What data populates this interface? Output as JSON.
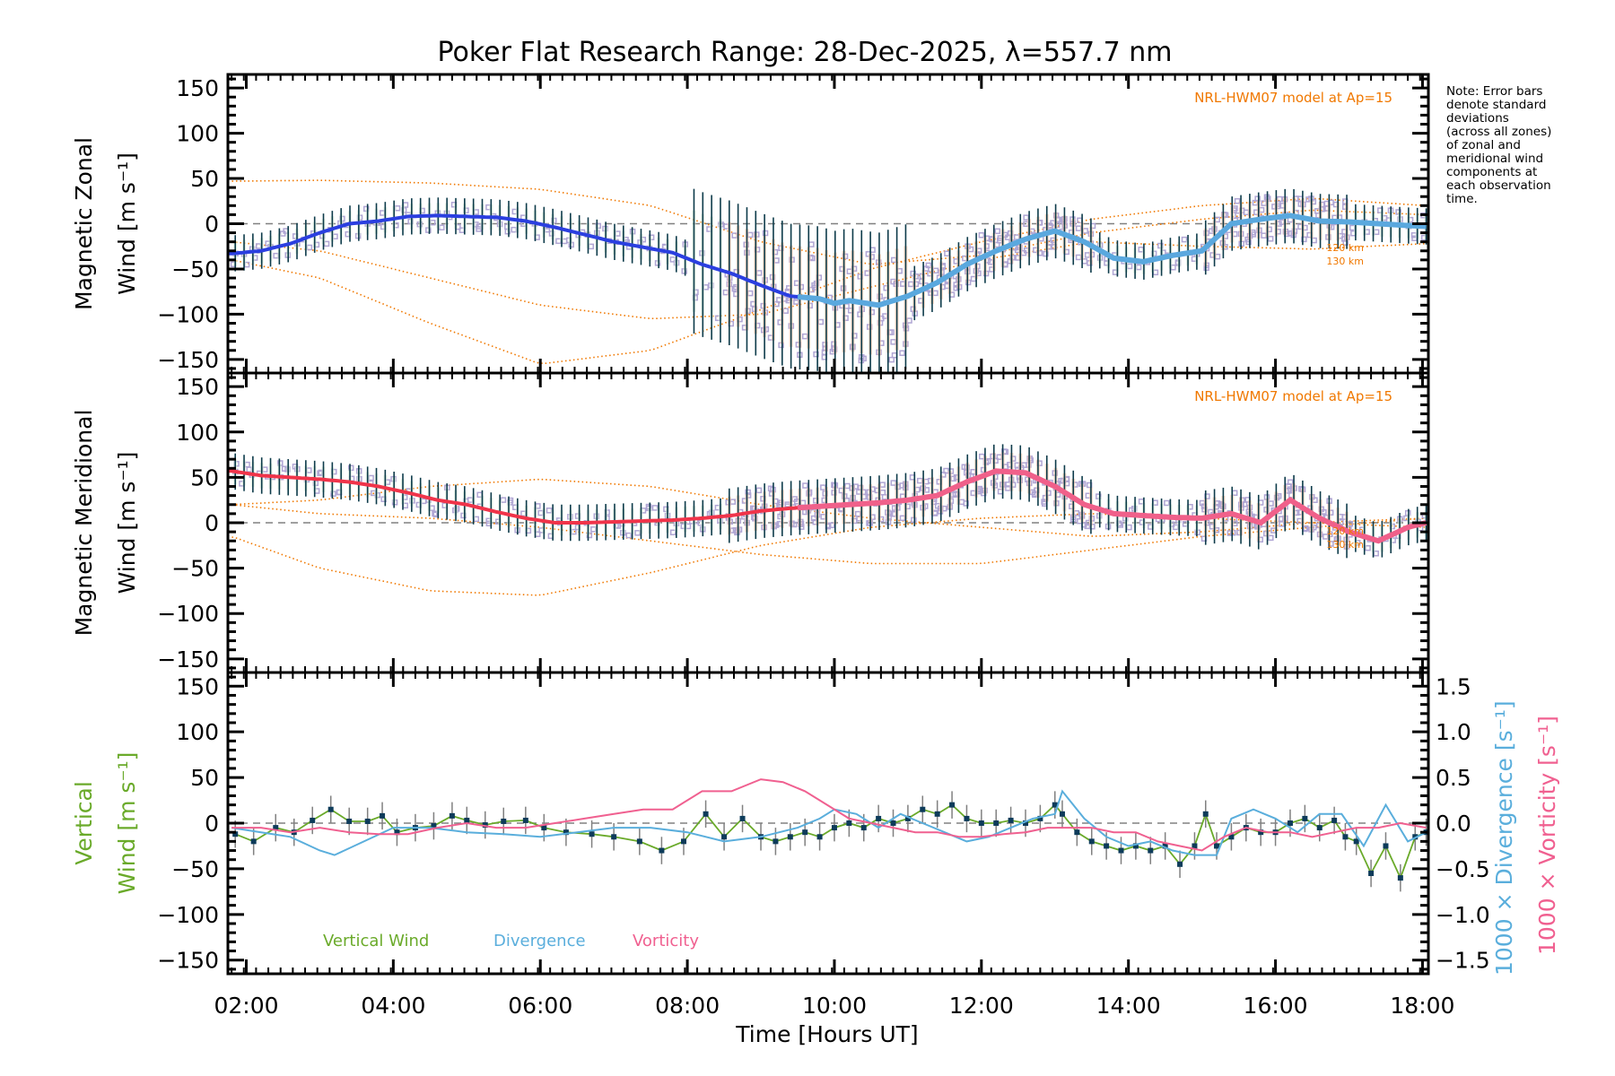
{
  "title": "Poker Flat Research Range: 28-Dec-2025, λ=557.7 nm",
  "note_lines": [
    "Note: Error bars",
    "denote standard",
    "deviations",
    "(across all zones)",
    "of zonal and",
    "meridional wind",
    "components at",
    "each observation",
    "time."
  ],
  "colors": {
    "zonal_fit": "#2b3fe0",
    "zonal_fit_late": "#5aa8de",
    "meridional_fit": "#f0344a",
    "meridional_fit_late": "#f0608a",
    "model": "#f07800",
    "scatter": "#b0a6d4",
    "errorbar": "#0d3b4a",
    "vertical_wind": "#6aaa2a",
    "vertical_marker": "#0d3b5a",
    "divergence": "#5aaedc",
    "vorticity": "#f06090",
    "zero_line": "#808080"
  },
  "chart_data": [
    {
      "type": "line",
      "panel": "zonal",
      "ylabel_line1": "Magnetic Zonal",
      "ylabel_line2": "Wind [m s⁻¹]",
      "ylim": [
        -165,
        165
      ],
      "yticks": [
        -150,
        -100,
        -50,
        0,
        50,
        100,
        150
      ],
      "ytick_labels": [
        "−150",
        "−100",
        "−50",
        "0",
        "50",
        "100",
        "150"
      ],
      "model_label": "NRL-HWM07 model at Ap=15",
      "model_alt_labels": [
        "120 km",
        "130 km"
      ],
      "series": [
        {
          "name": "Zonal wind fit",
          "x": [
            1.8,
            2.2,
            2.6,
            3.0,
            3.4,
            3.8,
            4.2,
            4.6,
            5.0,
            5.4,
            5.8,
            6.2,
            6.6,
            7.0,
            7.4,
            7.8,
            8.2,
            8.6,
            9.0,
            9.4,
            9.8,
            10.0,
            10.2,
            10.6,
            11.0,
            11.4,
            11.8,
            12.2,
            12.6,
            13.0,
            13.4,
            13.8,
            14.2,
            14.6,
            15.0,
            15.4,
            15.8,
            16.2,
            16.6,
            17.0,
            17.4,
            17.8,
            18.05
          ],
          "y": [
            -33,
            -30,
            -22,
            -10,
            0,
            3,
            8,
            9,
            8,
            7,
            3,
            -4,
            -12,
            -20,
            -26,
            -32,
            -45,
            -55,
            -68,
            -80,
            -83,
            -88,
            -85,
            -90,
            -80,
            -65,
            -45,
            -30,
            -17,
            -8,
            -20,
            -38,
            -42,
            -35,
            -30,
            0,
            5,
            9,
            3,
            2,
            0,
            -2,
            -3
          ]
        },
        {
          "name": "Model 120 km",
          "x": [
            1.8,
            3.0,
            4.5,
            6.0,
            7.5,
            9.0,
            10.5,
            12.0,
            13.5,
            15.0,
            16.5,
            18.05
          ],
          "y": [
            47,
            48,
            45,
            38,
            20,
            -20,
            -45,
            -35,
            -10,
            5,
            15,
            10
          ]
        },
        {
          "name": "Model 130 km",
          "x": [
            1.8,
            3.0,
            4.5,
            6.0,
            7.5,
            9.0,
            10.5,
            12.0,
            13.5,
            15.0,
            16.5,
            18.05
          ],
          "y": [
            -40,
            -60,
            -110,
            -155,
            -140,
            -95,
            -50,
            -20,
            5,
            20,
            28,
            20
          ]
        },
        {
          "name": "Model 120 km (b)",
          "x": [
            1.8,
            3.0,
            4.5,
            6.0,
            7.5,
            9.0,
            10.5,
            12.0,
            13.5,
            15.0,
            16.5,
            18.05
          ],
          "y": [
            -20,
            -30,
            -60,
            -90,
            -105,
            -100,
            -70,
            -40,
            -20,
            -25,
            -28,
            -22
          ]
        }
      ]
    },
    {
      "type": "line",
      "panel": "meridional",
      "ylabel_line1": "Magnetic Meridional",
      "ylabel_line2": "Wind [m s⁻¹]",
      "ylim": [
        -165,
        165
      ],
      "yticks": [
        -150,
        -100,
        -50,
        0,
        50,
        100,
        150
      ],
      "ytick_labels": [
        "−150",
        "−100",
        "−50",
        "0",
        "50",
        "100",
        "150"
      ],
      "model_label": "NRL-HWM07 model at Ap=15",
      "model_alt_labels": [
        "120 km",
        "130 km"
      ],
      "series": [
        {
          "name": "Meridional wind fit",
          "x": [
            1.8,
            2.2,
            2.6,
            3.0,
            3.4,
            3.8,
            4.2,
            4.6,
            5.0,
            5.4,
            5.8,
            6.2,
            6.6,
            7.0,
            7.4,
            7.8,
            8.2,
            8.6,
            9.0,
            9.4,
            9.8,
            10.2,
            10.6,
            11.0,
            11.4,
            11.8,
            12.2,
            12.6,
            13.0,
            13.4,
            13.8,
            14.2,
            14.6,
            15.0,
            15.4,
            15.8,
            16.2,
            16.6,
            17.0,
            17.4,
            17.8,
            18.05
          ],
          "y": [
            57,
            52,
            50,
            48,
            45,
            40,
            33,
            25,
            20,
            12,
            5,
            0,
            0,
            1,
            2,
            3,
            5,
            8,
            13,
            16,
            18,
            20,
            22,
            25,
            30,
            45,
            57,
            55,
            40,
            20,
            10,
            8,
            6,
            5,
            10,
            0,
            25,
            5,
            -10,
            -20,
            -5,
            0
          ]
        },
        {
          "name": "Model 120 km",
          "x": [
            1.8,
            3.0,
            4.5,
            6.0,
            7.5,
            9.0,
            10.5,
            12.0,
            13.5,
            15.0,
            16.5,
            18.05
          ],
          "y": [
            20,
            25,
            40,
            48,
            40,
            20,
            5,
            -5,
            -15,
            -10,
            0,
            5
          ]
        },
        {
          "name": "Model 130 km",
          "x": [
            1.8,
            3.0,
            4.5,
            6.0,
            7.5,
            9.0,
            10.5,
            12.0,
            13.5,
            15.0,
            16.5,
            18.05
          ],
          "y": [
            -15,
            -50,
            -75,
            -80,
            -55,
            -25,
            -5,
            5,
            10,
            5,
            0,
            -5
          ]
        },
        {
          "name": "Model 120 km (b)",
          "x": [
            1.8,
            3.0,
            4.5,
            6.0,
            7.5,
            9.0,
            10.5,
            12.0,
            13.5,
            15.0,
            16.5,
            18.05
          ],
          "y": [
            20,
            10,
            5,
            -5,
            -20,
            -35,
            -45,
            -45,
            -30,
            -15,
            -5,
            5
          ]
        }
      ]
    },
    {
      "type": "line",
      "panel": "vertical",
      "ylabel_line1": "Vertical",
      "ylabel_line2": "Wind [m s⁻¹]",
      "ylim": [
        -165,
        165
      ],
      "yticks": [
        -150,
        -100,
        -50,
        0,
        50,
        100,
        150
      ],
      "ytick_labels": [
        "−150",
        "−100",
        "−50",
        "0",
        "50",
        "100",
        "150"
      ],
      "y2lim": [
        -1.65,
        1.65
      ],
      "y2ticks": [
        -1.5,
        -1.0,
        -0.5,
        0.0,
        0.5,
        1.0,
        1.5
      ],
      "y2tick_labels": [
        "−1.5",
        "−1.0",
        "−0.5",
        "0.0",
        "0.5",
        "1.0",
        "1.5"
      ],
      "y2label_divergence": "1000 × Divergence [s⁻¹]",
      "y2label_vorticity": "1000 × Vorticity [s⁻¹]",
      "legend": [
        "Vertical Wind",
        "Divergence",
        "Vorticity"
      ],
      "legend_position": "bottom-left",
      "series": [
        {
          "name": "Vertical Wind",
          "axis": "left",
          "x": [
            1.85,
            2.1,
            2.4,
            2.65,
            2.9,
            3.15,
            3.4,
            3.65,
            3.85,
            4.05,
            4.3,
            4.55,
            4.8,
            5.0,
            5.25,
            5.5,
            5.8,
            6.05,
            6.35,
            6.7,
            7.0,
            7.35,
            7.65,
            7.95,
            8.25,
            8.5,
            8.75,
            9.0,
            9.2,
            9.4,
            9.6,
            9.8,
            10.0,
            10.2,
            10.4,
            10.6,
            10.8,
            11.0,
            11.2,
            11.4,
            11.6,
            11.8,
            12.0,
            12.2,
            12.4,
            12.6,
            12.8,
            13.0,
            13.1,
            13.3,
            13.5,
            13.7,
            13.9,
            14.1,
            14.3,
            14.5,
            14.7,
            14.9,
            15.05,
            15.2,
            15.4,
            15.6,
            15.8,
            16.0,
            16.2,
            16.4,
            16.6,
            16.8,
            16.95,
            17.1,
            17.3,
            17.5,
            17.7,
            17.9,
            18.05
          ],
          "y": [
            -12,
            -20,
            -5,
            -10,
            3,
            15,
            2,
            2,
            8,
            -10,
            -5,
            -3,
            8,
            3,
            -2,
            2,
            3,
            -5,
            -10,
            -12,
            -15,
            -20,
            -30,
            -20,
            10,
            -15,
            5,
            -15,
            -20,
            -15,
            -10,
            -15,
            -5,
            0,
            -5,
            5,
            0,
            5,
            15,
            10,
            20,
            5,
            0,
            0,
            3,
            0,
            5,
            20,
            10,
            -10,
            -20,
            -25,
            -30,
            -25,
            -30,
            -25,
            -45,
            -25,
            10,
            -25,
            -15,
            -5,
            -10,
            -10,
            0,
            5,
            -5,
            3,
            -15,
            -20,
            -55,
            -25,
            -60,
            -15,
            -10
          ]
        },
        {
          "name": "Divergence",
          "axis": "right",
          "x": [
            1.8,
            2.2,
            2.6,
            3.0,
            3.2,
            3.6,
            4.0,
            4.5,
            5.0,
            5.5,
            6.0,
            6.5,
            7.0,
            7.5,
            8.0,
            8.5,
            9.0,
            9.5,
            9.8,
            10.0,
            10.3,
            10.6,
            10.9,
            11.2,
            11.5,
            11.8,
            12.1,
            12.4,
            12.7,
            13.0,
            13.1,
            13.4,
            13.7,
            14.0,
            14.3,
            14.6,
            14.9,
            15.2,
            15.4,
            15.7,
            16.0,
            16.3,
            16.6,
            16.9,
            17.2,
            17.5,
            17.8,
            18.05
          ],
          "y": [
            -0.05,
            -0.1,
            -0.15,
            -0.3,
            -0.35,
            -0.2,
            -0.05,
            -0.05,
            -0.1,
            -0.12,
            -0.15,
            -0.1,
            -0.05,
            -0.05,
            -0.1,
            -0.2,
            -0.15,
            -0.05,
            0.05,
            0.15,
            0.1,
            -0.05,
            0.1,
            0.0,
            -0.1,
            -0.2,
            -0.15,
            -0.05,
            0.05,
            0.1,
            0.35,
            0.05,
            -0.15,
            -0.25,
            -0.2,
            -0.3,
            -0.35,
            -0.35,
            0.05,
            0.15,
            0.05,
            -0.1,
            0.1,
            0.1,
            -0.25,
            0.2,
            -0.2,
            -0.1
          ]
        },
        {
          "name": "Vorticity",
          "axis": "right",
          "x": [
            1.8,
            2.2,
            2.6,
            3.0,
            3.4,
            3.8,
            4.2,
            4.6,
            5.0,
            5.4,
            5.8,
            6.2,
            6.6,
            7.0,
            7.4,
            7.8,
            8.2,
            8.6,
            9.0,
            9.3,
            9.6,
            9.9,
            10.2,
            10.5,
            10.8,
            11.1,
            11.4,
            11.7,
            12.0,
            12.3,
            12.6,
            12.9,
            13.2,
            13.5,
            13.8,
            14.1,
            14.4,
            14.7,
            15.0,
            15.3,
            15.6,
            15.9,
            16.2,
            16.5,
            16.8,
            17.1,
            17.4,
            17.7,
            18.05
          ],
          "y": [
            -0.05,
            -0.05,
            -0.1,
            -0.05,
            -0.1,
            -0.12,
            -0.12,
            -0.05,
            0.0,
            -0.05,
            -0.05,
            0.0,
            0.05,
            0.1,
            0.15,
            0.15,
            0.35,
            0.35,
            0.48,
            0.45,
            0.35,
            0.2,
            0.05,
            0.0,
            -0.05,
            -0.1,
            -0.1,
            -0.15,
            -0.15,
            -0.12,
            -0.1,
            -0.05,
            -0.05,
            -0.05,
            -0.1,
            -0.1,
            -0.2,
            -0.25,
            -0.3,
            -0.15,
            -0.05,
            -0.1,
            -0.1,
            -0.15,
            -0.1,
            -0.05,
            -0.05,
            0.0,
            -0.05
          ]
        }
      ]
    }
  ],
  "xaxis": {
    "label": "Time [Hours UT]",
    "xlim": [
      1.75,
      18.08
    ],
    "ticks": [
      2,
      4,
      6,
      8,
      10,
      12,
      14,
      16,
      18
    ],
    "tick_labels": [
      "02:00",
      "04:00",
      "06:00",
      "08:00",
      "10:00",
      "12:00",
      "14:00",
      "16:00",
      "18:00"
    ]
  }
}
